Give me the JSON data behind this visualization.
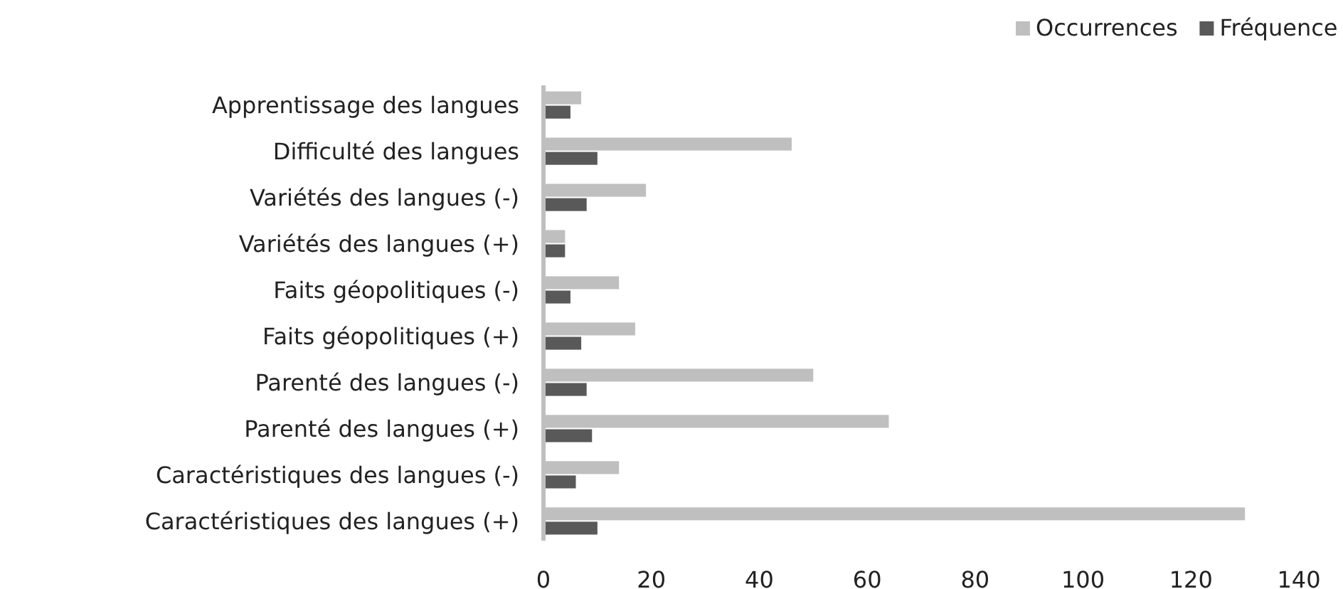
{
  "chart_data": {
    "type": "bar",
    "orientation": "horizontal",
    "categories": [
      "Apprentissage des langues",
      "Difficulté des langues",
      "Variétés des langues (-)",
      "Variétés des langues (+)",
      "Faits géopolitiques (-)",
      "Faits géopolitiques (+)",
      "Parenté des langues (-)",
      "Parenté des langues (+)",
      "Caractéristiques des langues (-)",
      "Caractéristiques des langues (+)"
    ],
    "series": [
      {
        "name": "Occurrences",
        "color": "#bfbfbf",
        "values": [
          7,
          46,
          19,
          4,
          14,
          17,
          50,
          64,
          14,
          130
        ]
      },
      {
        "name": "Fréquence",
        "color": "#595959",
        "values": [
          5,
          10,
          8,
          4,
          5,
          7,
          8,
          9,
          6,
          10
        ]
      }
    ],
    "xlim": [
      0,
      140
    ],
    "xticks": [
      0,
      20,
      40,
      60,
      80,
      100,
      120,
      140
    ],
    "grid": false,
    "legend": "top right"
  }
}
